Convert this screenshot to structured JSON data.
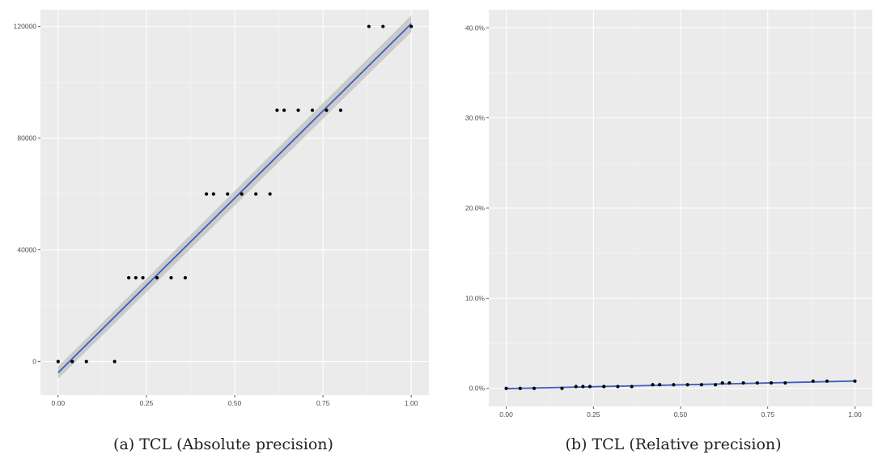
{
  "captions": {
    "a": "(a) TCL (Absolute precision)",
    "b": "(b) TCL (Relative precision)"
  },
  "colors": {
    "panel_bg": "#ebebeb",
    "grid_major": "#ffffff",
    "points": "#000000",
    "fit_line": "#3b5fc0",
    "confidence_band": "#c4c4c4"
  },
  "chart_data": [
    {
      "type": "scatter",
      "subtitle": "(a) TCL (Absolute precision)",
      "xlabel": "",
      "ylabel": "",
      "xlim": [
        -0.05,
        1.05
      ],
      "ylim": [
        -12000,
        126000
      ],
      "x_ticks": [
        0,
        0.25,
        0.5,
        0.75,
        1
      ],
      "x_tick_labels": [
        "0.00",
        "0.25",
        "0.50",
        "0.75",
        "1.00"
      ],
      "y_ticks": [
        0,
        40000,
        80000,
        120000
      ],
      "y_tick_labels": [
        "0",
        "40000",
        "80000",
        "120000"
      ],
      "grid": true,
      "points": [
        {
          "x": 0.0,
          "y": 0
        },
        {
          "x": 0.04,
          "y": 0
        },
        {
          "x": 0.08,
          "y": 0
        },
        {
          "x": 0.16,
          "y": 0
        },
        {
          "x": 0.2,
          "y": 30000
        },
        {
          "x": 0.22,
          "y": 30000
        },
        {
          "x": 0.24,
          "y": 30000
        },
        {
          "x": 0.28,
          "y": 30000
        },
        {
          "x": 0.32,
          "y": 30000
        },
        {
          "x": 0.36,
          "y": 30000
        },
        {
          "x": 0.42,
          "y": 60000
        },
        {
          "x": 0.44,
          "y": 60000
        },
        {
          "x": 0.48,
          "y": 60000
        },
        {
          "x": 0.52,
          "y": 60000
        },
        {
          "x": 0.56,
          "y": 60000
        },
        {
          "x": 0.6,
          "y": 60000
        },
        {
          "x": 0.62,
          "y": 90000
        },
        {
          "x": 0.64,
          "y": 90000
        },
        {
          "x": 0.68,
          "y": 90000
        },
        {
          "x": 0.72,
          "y": 90000
        },
        {
          "x": 0.76,
          "y": 90000
        },
        {
          "x": 0.8,
          "y": 90000
        },
        {
          "x": 0.88,
          "y": 120000
        },
        {
          "x": 0.92,
          "y": 120000
        },
        {
          "x": 1.0,
          "y": 120000
        }
      ],
      "fit_line": {
        "x": [
          0,
          1
        ],
        "y": [
          -4000,
          121000
        ]
      },
      "confidence_band": {
        "x": [
          0,
          1
        ],
        "lower": [
          -6200,
          118000
        ],
        "upper": [
          -1800,
          124000
        ]
      }
    },
    {
      "type": "scatter",
      "subtitle": "(b) TCL (Relative precision)",
      "xlabel": "",
      "ylabel": "",
      "xlim": [
        -0.05,
        1.05
      ],
      "ylim": [
        -0.02,
        0.42
      ],
      "x_ticks": [
        0,
        0.25,
        0.5,
        0.75,
        1
      ],
      "x_tick_labels": [
        "0.00",
        "0.25",
        "0.50",
        "0.75",
        "1.00"
      ],
      "y_ticks": [
        0,
        0.1,
        0.2,
        0.3,
        0.4
      ],
      "y_tick_labels": [
        "0.0%",
        "10.0%",
        "20.0%",
        "30.0%",
        "40.0%"
      ],
      "grid": true,
      "points": [
        {
          "x": 0.0,
          "y": 0.0
        },
        {
          "x": 0.04,
          "y": 0.0
        },
        {
          "x": 0.08,
          "y": 0.0
        },
        {
          "x": 0.16,
          "y": 0.0
        },
        {
          "x": 0.2,
          "y": 0.002
        },
        {
          "x": 0.22,
          "y": 0.002
        },
        {
          "x": 0.24,
          "y": 0.002
        },
        {
          "x": 0.28,
          "y": 0.002
        },
        {
          "x": 0.32,
          "y": 0.002
        },
        {
          "x": 0.36,
          "y": 0.002
        },
        {
          "x": 0.42,
          "y": 0.004
        },
        {
          "x": 0.44,
          "y": 0.004
        },
        {
          "x": 0.48,
          "y": 0.004
        },
        {
          "x": 0.52,
          "y": 0.004
        },
        {
          "x": 0.56,
          "y": 0.004
        },
        {
          "x": 0.6,
          "y": 0.004
        },
        {
          "x": 0.62,
          "y": 0.006
        },
        {
          "x": 0.64,
          "y": 0.006
        },
        {
          "x": 0.68,
          "y": 0.006
        },
        {
          "x": 0.72,
          "y": 0.006
        },
        {
          "x": 0.76,
          "y": 0.006
        },
        {
          "x": 0.8,
          "y": 0.006
        },
        {
          "x": 0.88,
          "y": 0.008
        },
        {
          "x": 0.92,
          "y": 0.008
        },
        {
          "x": 1.0,
          "y": 0.008
        }
      ],
      "fit_line": {
        "x": [
          0,
          1
        ],
        "y": [
          -0.0003,
          0.0081
        ]
      },
      "confidence_band": {
        "x": [
          0,
          1
        ],
        "lower": [
          -0.0007,
          0.0077
        ],
        "upper": [
          0.0001,
          0.0085
        ]
      }
    }
  ]
}
